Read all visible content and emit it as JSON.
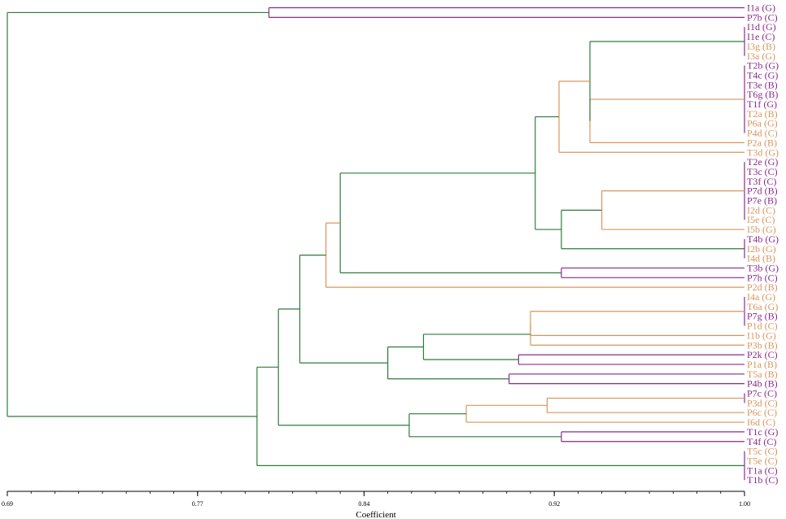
{
  "colors": {
    "purple": "#8b2a8b",
    "orange": "#d9955c",
    "green": "#2f7a3c",
    "axis": "#000000"
  },
  "axis": {
    "min": 0.69,
    "max": 1.0,
    "label": "Coefficient",
    "ticks": [
      {
        "value": 0.69,
        "label": "0.69"
      },
      {
        "value": 0.77,
        "label": "0.77"
      },
      {
        "value": 0.84,
        "label": "0.84"
      },
      {
        "value": 0.92,
        "label": "0.92"
      },
      {
        "value": 1.0,
        "label": "1.00"
      }
    ]
  },
  "leaves": [
    {
      "label": "I1a (G)",
      "color": "purple"
    },
    {
      "label": "P7b (C)",
      "color": "purple"
    },
    {
      "label": "I1d (G)",
      "color": "purple"
    },
    {
      "label": "I1e (C)",
      "color": "purple"
    },
    {
      "label": "I3g (B)",
      "color": "orange"
    },
    {
      "label": "I3a (G)",
      "color": "orange"
    },
    {
      "label": "T2b (G)",
      "color": "purple"
    },
    {
      "label": "T4c (G)",
      "color": "purple"
    },
    {
      "label": "T3e (B)",
      "color": "purple"
    },
    {
      "label": "T6g (B)",
      "color": "purple"
    },
    {
      "label": "T1f (G)",
      "color": "purple"
    },
    {
      "label": "T2a (B)",
      "color": "orange"
    },
    {
      "label": "P6a (G)",
      "color": "orange"
    },
    {
      "label": "P4d (C)",
      "color": "orange"
    },
    {
      "label": "P2a (B)",
      "color": "orange"
    },
    {
      "label": "T3d (G)",
      "color": "orange"
    },
    {
      "label": "T2e (G)",
      "color": "purple"
    },
    {
      "label": "T3c (C)",
      "color": "purple"
    },
    {
      "label": "T3f (C)",
      "color": "purple"
    },
    {
      "label": "P7d (B)",
      "color": "purple"
    },
    {
      "label": "P7e (B)",
      "color": "purple"
    },
    {
      "label": "I2d (C)",
      "color": "orange"
    },
    {
      "label": "I5e (C)",
      "color": "orange"
    },
    {
      "label": "I5b (G)",
      "color": "orange"
    },
    {
      "label": "T4b (G)",
      "color": "purple"
    },
    {
      "label": "I2b (G)",
      "color": "orange"
    },
    {
      "label": "I4d (B)",
      "color": "orange"
    },
    {
      "label": "T3b (G)",
      "color": "purple"
    },
    {
      "label": "P7h (C)",
      "color": "purple"
    },
    {
      "label": "P2d (B)",
      "color": "orange"
    },
    {
      "label": "I4a (G)",
      "color": "orange"
    },
    {
      "label": "T6a (G)",
      "color": "orange"
    },
    {
      "label": "P7g (B)",
      "color": "purple"
    },
    {
      "label": "P1d (C)",
      "color": "orange"
    },
    {
      "label": "I1b (G)",
      "color": "orange"
    },
    {
      "label": "P3b (B)",
      "color": "orange"
    },
    {
      "label": "P2k (C)",
      "color": "purple"
    },
    {
      "label": "P1a (B)",
      "color": "orange"
    },
    {
      "label": "T5a (B)",
      "color": "orange"
    },
    {
      "label": "P4b (B)",
      "color": "purple"
    },
    {
      "label": "P7c (C)",
      "color": "purple"
    },
    {
      "label": "P3d (C)",
      "color": "orange"
    },
    {
      "label": "P6c (C)",
      "color": "orange"
    },
    {
      "label": "I6d (C)",
      "color": "orange"
    },
    {
      "label": "T1c (G)",
      "color": "purple"
    },
    {
      "label": "T4f (C)",
      "color": "purple"
    },
    {
      "label": "T5c (C)",
      "color": "orange"
    },
    {
      "label": "T5e (C)",
      "color": "orange"
    },
    {
      "label": "T1a (C)",
      "color": "purple"
    },
    {
      "label": "T1b (C)",
      "color": "purple"
    }
  ],
  "merges": [
    {
      "children": [
        0,
        1
      ],
      "height": 0.8,
      "color": "purple"
    },
    {
      "children": [
        2,
        3,
        4,
        5
      ],
      "height": 1.0,
      "color": "purple"
    },
    {
      "children": [
        6,
        7,
        8,
        9,
        10,
        11,
        12,
        13
      ],
      "height": 1.0,
      "color": "purple"
    },
    {
      "children": [
        "n2",
        14
      ],
      "height": 0.935,
      "color": "orange"
    },
    {
      "children": [
        "n1",
        "n3"
      ],
      "height": 0.935,
      "color": "green"
    },
    {
      "children": [
        "n4",
        15
      ],
      "height": 0.922,
      "color": "orange"
    },
    {
      "children": [
        16,
        17,
        18,
        19,
        20,
        21,
        22
      ],
      "height": 1.0,
      "color": "purple"
    },
    {
      "children": [
        "n6",
        23
      ],
      "height": 0.94,
      "color": "orange"
    },
    {
      "children": [
        24,
        25,
        26
      ],
      "height": 1.0,
      "color": "purple"
    },
    {
      "children": [
        "n7",
        "n8"
      ],
      "height": 0.923,
      "color": "green"
    },
    {
      "children": [
        "n5",
        "n9"
      ],
      "height": 0.912,
      "color": "green"
    },
    {
      "children": [
        27,
        28
      ],
      "height": 0.923,
      "color": "purple"
    },
    {
      "children": [
        "n10",
        "n11"
      ],
      "height": 0.83,
      "color": "green"
    },
    {
      "children": [
        "n12",
        29
      ],
      "height": 0.824,
      "color": "orange"
    },
    {
      "children": [
        30,
        31,
        32,
        33
      ],
      "height": 1.0,
      "color": "purple"
    },
    {
      "children": [
        "n14",
        34
      ],
      "height": 0.91,
      "color": "orange"
    },
    {
      "children": [
        "n15",
        35
      ],
      "height": 0.91,
      "color": "orange"
    },
    {
      "children": [
        36,
        37
      ],
      "height": 0.905,
      "color": "purple"
    },
    {
      "children": [
        "n16",
        "n17"
      ],
      "height": 0.865,
      "color": "green"
    },
    {
      "children": [
        38,
        39
      ],
      "height": 0.901,
      "color": "purple"
    },
    {
      "children": [
        "n18",
        "n19"
      ],
      "height": 0.85,
      "color": "green"
    },
    {
      "children": [
        40,
        41
      ],
      "height": 1.0,
      "color": "purple"
    },
    {
      "children": [
        "n21",
        42
      ],
      "height": 0.917,
      "color": "orange"
    },
    {
      "children": [
        "n22",
        43
      ],
      "height": 0.883,
      "color": "orange"
    },
    {
      "children": [
        44,
        45
      ],
      "height": 0.923,
      "color": "purple"
    },
    {
      "children": [
        "n23",
        "n24"
      ],
      "height": 0.859,
      "color": "green"
    },
    {
      "children": [
        "n13",
        "n20"
      ],
      "height": 0.813,
      "color": "green"
    },
    {
      "children": [
        "n26",
        "n25"
      ],
      "height": 0.804,
      "color": "green"
    },
    {
      "children": [
        46,
        47,
        48,
        49
      ],
      "height": 1.0,
      "color": "purple"
    },
    {
      "children": [
        "n27",
        "n28"
      ],
      "height": 0.795,
      "color": "green"
    },
    {
      "children": [
        "n0",
        "n29"
      ],
      "height": 0.69,
      "color": "green"
    }
  ]
}
